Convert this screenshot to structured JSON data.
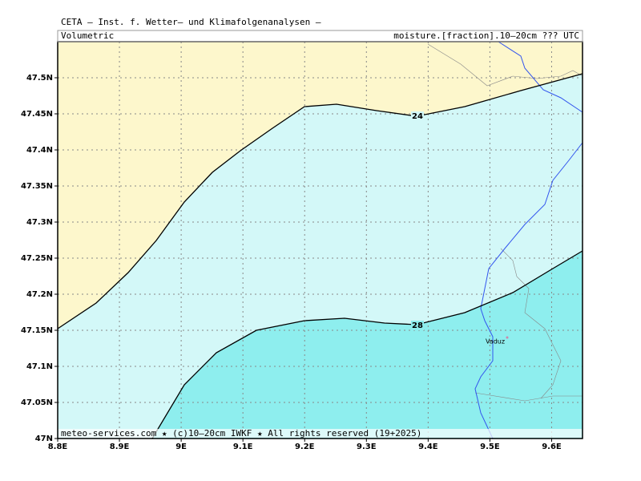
{
  "header": {
    "title": "CETA — Inst. f. Wetter— und Klimafolgenanalysen —",
    "left": "Volumetric",
    "right": "moisture.[fraction].10–20cm ??? UTC"
  },
  "map": {
    "xlim": [
      8.8,
      9.65
    ],
    "ylim": [
      47,
      47.55
    ],
    "xticks": [
      {
        "value": 8.8,
        "label": "8.8E"
      },
      {
        "value": 8.9,
        "label": "8.9E"
      },
      {
        "value": 9,
        "label": "9E"
      },
      {
        "value": 9.1,
        "label": "9.1E"
      },
      {
        "value": 9.2,
        "label": "9.2E"
      },
      {
        "value": 9.3,
        "label": "9.3E"
      },
      {
        "value": 9.4,
        "label": "9.4E"
      },
      {
        "value": 9.5,
        "label": "9.5E"
      },
      {
        "value": 9.6,
        "label": "9.6E"
      }
    ],
    "yticks": [
      {
        "value": 47,
        "label": "47N"
      },
      {
        "value": 47.05,
        "label": "47.05N"
      },
      {
        "value": 47.1,
        "label": "47.1N"
      },
      {
        "value": 47.15,
        "label": "47.15N"
      },
      {
        "value": 47.2,
        "label": "47.2N"
      },
      {
        "value": 47.25,
        "label": "47.25N"
      },
      {
        "value": 47.3,
        "label": "47.3N"
      },
      {
        "value": 47.35,
        "label": "47.35N"
      },
      {
        "value": 47.4,
        "label": "47.4N"
      },
      {
        "value": 47.45,
        "label": "47.45N"
      },
      {
        "value": 47.5,
        "label": "47.5N"
      }
    ],
    "contours": [
      24,
      28
    ],
    "place": "Vaduz",
    "footer": "meteo-services.com ★ (c)10–20cm IWKF ★ All rights reserved (19+2025)"
  }
}
